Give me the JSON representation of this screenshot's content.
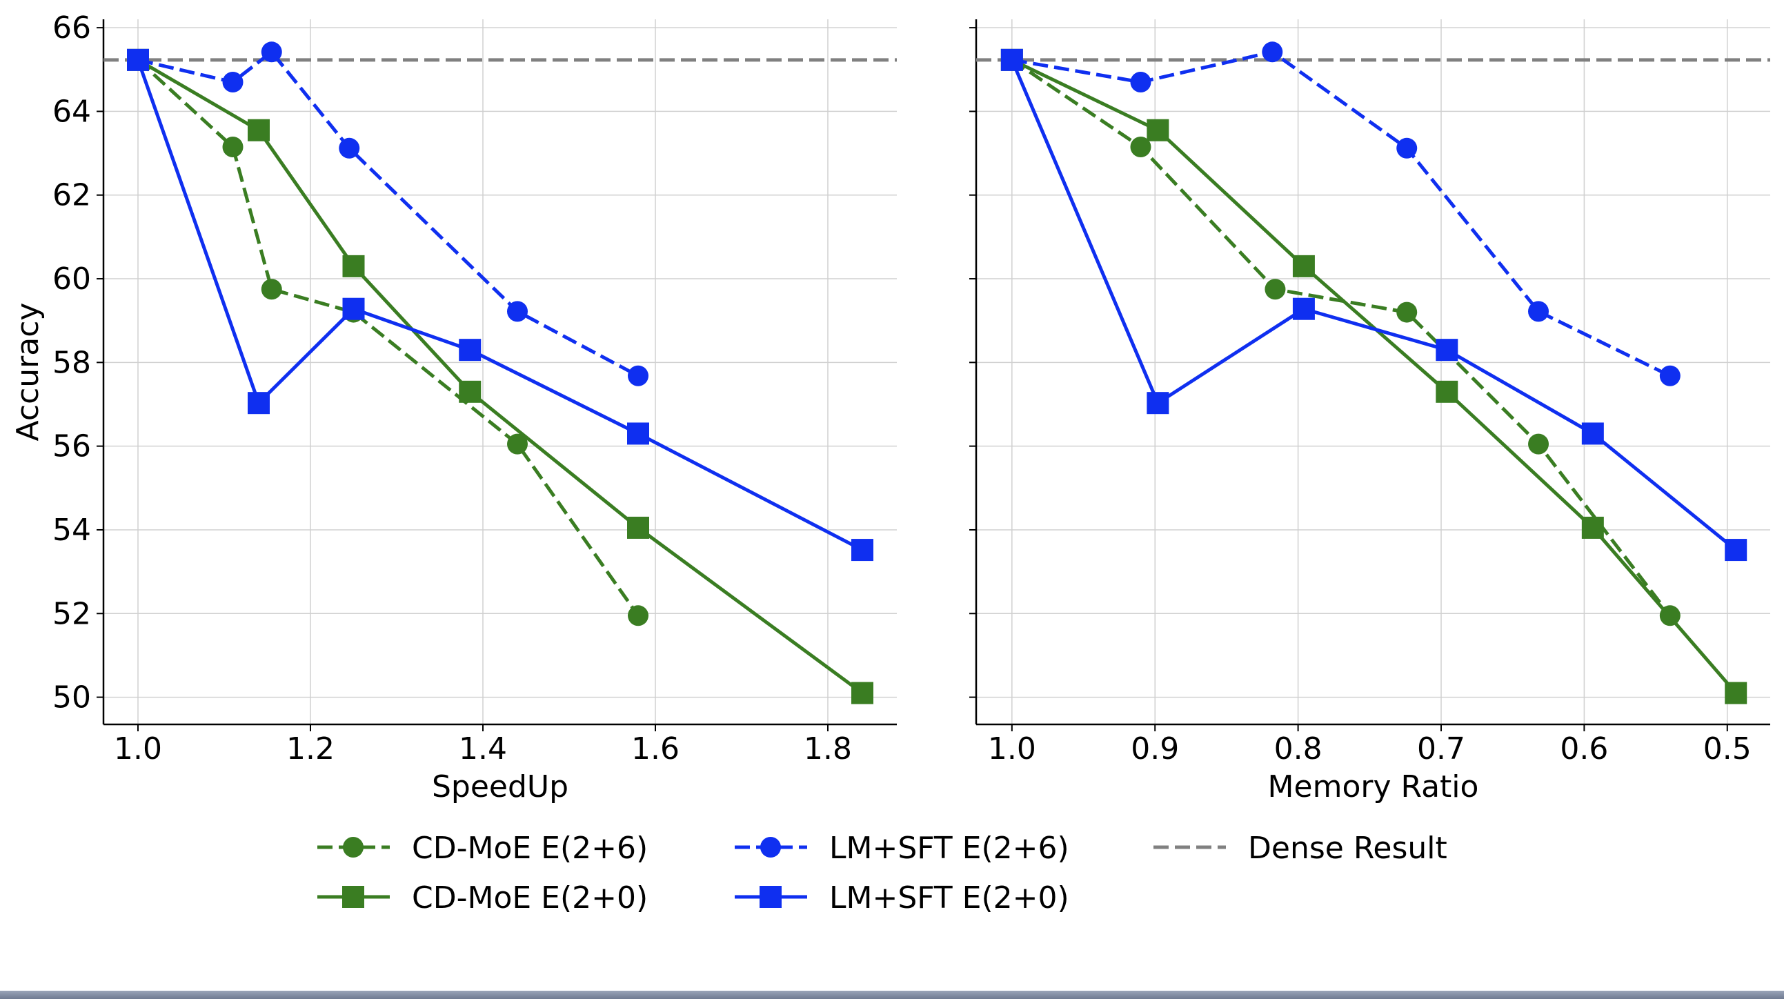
{
  "chart_data": [
    {
      "type": "line",
      "xlabel": "SpeedUp",
      "ylabel": "Accuracy",
      "xlim": [
        0.96,
        1.88
      ],
      "ylim": [
        49.35,
        66.2
      ],
      "x_ticks": [
        "1.0",
        "1.2",
        "1.4",
        "1.6",
        "1.8"
      ],
      "y_ticks": [
        "50",
        "52",
        "54",
        "56",
        "58",
        "60",
        "62",
        "64",
        "66"
      ],
      "grid": true,
      "dense_result": 65.23,
      "series": [
        {
          "name": "CD-MoE E(2+6)",
          "color": "#3a7d22",
          "dashed": true,
          "marker": "circle",
          "x": [
            1.0,
            1.11,
            1.155,
            1.25,
            1.44,
            1.58
          ],
          "y": [
            65.23,
            63.15,
            59.75,
            59.2,
            56.05,
            51.95
          ]
        },
        {
          "name": "CD-MoE E(2+0)",
          "color": "#3a7d22",
          "dashed": false,
          "marker": "square",
          "x": [
            1.0,
            1.14,
            1.25,
            1.385,
            1.58,
            1.84
          ],
          "y": [
            65.23,
            63.55,
            60.3,
            57.3,
            54.05,
            50.1
          ]
        },
        {
          "name": "LM+SFT E(2+6)",
          "color": "#0f2ff0",
          "dashed": true,
          "marker": "circle",
          "x": [
            1.0,
            1.11,
            1.155,
            1.245,
            1.44,
            1.58
          ],
          "y": [
            65.23,
            64.7,
            65.42,
            63.12,
            59.22,
            57.68
          ]
        },
        {
          "name": "LM+SFT E(2+0)",
          "color": "#0f2ff0",
          "dashed": false,
          "marker": "square",
          "x": [
            1.0,
            1.14,
            1.25,
            1.385,
            1.58,
            1.84
          ],
          "y": [
            65.23,
            57.03,
            59.28,
            58.3,
            56.3,
            53.52
          ]
        }
      ]
    },
    {
      "type": "line",
      "xlabel": "Memory Ratio",
      "ylabel": "",
      "xlim": [
        1.025,
        0.47
      ],
      "ylim": [
        49.35,
        66.2
      ],
      "x_ticks": [
        "1.0",
        "0.9",
        "0.8",
        "0.7",
        "0.6",
        "0.5"
      ],
      "y_ticks": [],
      "grid": true,
      "dense_result": 65.23,
      "series": [
        {
          "name": "CD-MoE E(2+6)",
          "color": "#3a7d22",
          "dashed": true,
          "marker": "circle",
          "x": [
            1.0,
            0.91,
            0.816,
            0.724,
            0.632,
            0.54
          ],
          "y": [
            65.23,
            63.15,
            59.75,
            59.2,
            56.05,
            51.95
          ]
        },
        {
          "name": "CD-MoE E(2+0)",
          "color": "#3a7d22",
          "dashed": false,
          "marker": "square",
          "x": [
            1.0,
            0.898,
            0.796,
            0.696,
            0.594,
            0.494
          ],
          "y": [
            65.23,
            63.55,
            60.3,
            57.3,
            54.05,
            50.1
          ]
        },
        {
          "name": "LM+SFT E(2+6)",
          "color": "#0f2ff0",
          "dashed": true,
          "marker": "circle",
          "x": [
            1.0,
            0.91,
            0.818,
            0.724,
            0.632,
            0.54
          ],
          "y": [
            65.23,
            64.7,
            65.42,
            63.12,
            59.22,
            57.68
          ]
        },
        {
          "name": "LM+SFT E(2+0)",
          "color": "#0f2ff0",
          "dashed": false,
          "marker": "square",
          "x": [
            1.0,
            0.898,
            0.796,
            0.696,
            0.594,
            0.494
          ],
          "y": [
            65.23,
            57.03,
            59.28,
            58.3,
            56.3,
            53.52
          ]
        }
      ]
    }
  ],
  "legend": [
    {
      "label": "CD-MoE E(2+6)",
      "color": "#3a7d22",
      "dashed": true,
      "marker": "circle"
    },
    {
      "label": "CD-MoE E(2+0)",
      "color": "#3a7d22",
      "dashed": false,
      "marker": "square"
    },
    {
      "label": "LM+SFT E(2+6)",
      "color": "#0f2ff0",
      "dashed": true,
      "marker": "circle"
    },
    {
      "label": "LM+SFT E(2+0)",
      "color": "#0f2ff0",
      "dashed": false,
      "marker": "square"
    },
    {
      "label": "Dense Result",
      "color": "#808080",
      "dashed": true,
      "marker": "none"
    }
  ]
}
